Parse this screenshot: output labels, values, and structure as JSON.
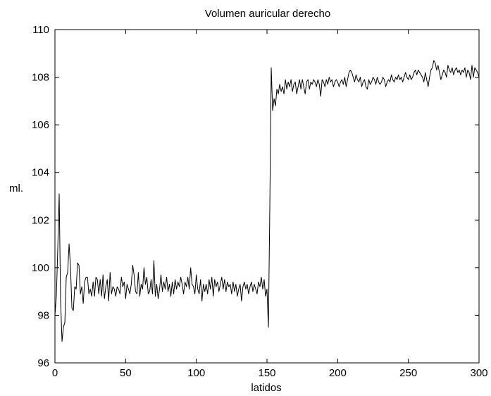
{
  "chart_data": {
    "type": "line",
    "title": "Volumen auricular derecho",
    "xlabel": "latidos",
    "ylabel": "ml.",
    "xlim": [
      0,
      300
    ],
    "ylim": [
      96,
      110
    ],
    "xticks": [
      0,
      50,
      100,
      150,
      200,
      250,
      300
    ],
    "yticks": [
      96,
      98,
      100,
      102,
      104,
      106,
      108,
      110
    ],
    "grid": false,
    "line_color": "#000000",
    "series": [
      {
        "values": [
          [
            0,
            98.0
          ],
          [
            1,
            98.8
          ],
          [
            2,
            100.8
          ],
          [
            3,
            103.1
          ],
          [
            4,
            98.6
          ],
          [
            5,
            96.9
          ],
          [
            6,
            97.5
          ],
          [
            7,
            97.7
          ],
          [
            8,
            99.6
          ],
          [
            9,
            99.8
          ],
          [
            10,
            101.0
          ],
          [
            11,
            100.0
          ],
          [
            12,
            98.3
          ],
          [
            13,
            98.2
          ],
          [
            14,
            99.2
          ],
          [
            15,
            99.1
          ],
          [
            16,
            100.2
          ],
          [
            17,
            100.1
          ],
          [
            18,
            98.9
          ],
          [
            19,
            99.2
          ],
          [
            20,
            98.5
          ],
          [
            21,
            99.4
          ],
          [
            22,
            99.6
          ],
          [
            23,
            99.6
          ],
          [
            24,
            98.9
          ],
          [
            25,
            99.1
          ],
          [
            26,
            98.8
          ],
          [
            27,
            99.4
          ],
          [
            28,
            98.8
          ],
          [
            29,
            99.6
          ],
          [
            30,
            99.5
          ],
          [
            31,
            98.9
          ],
          [
            32,
            99.5
          ],
          [
            33,
            98.8
          ],
          [
            34,
            99.7
          ],
          [
            35,
            98.7
          ],
          [
            36,
            99.2
          ],
          [
            37,
            99.5
          ],
          [
            38,
            98.6
          ],
          [
            39,
            99.8
          ],
          [
            40,
            98.9
          ],
          [
            41,
            99.2
          ],
          [
            42,
            99.1
          ],
          [
            43,
            98.8
          ],
          [
            44,
            99.2
          ],
          [
            45,
            99.1
          ],
          [
            46,
            98.9
          ],
          [
            47,
            99.6
          ],
          [
            48,
            99.2
          ],
          [
            49,
            99.4
          ],
          [
            50,
            98.7
          ],
          [
            51,
            99.3
          ],
          [
            52,
            99.1
          ],
          [
            53,
            98.9
          ],
          [
            54,
            99.3
          ],
          [
            55,
            100.1
          ],
          [
            56,
            99.7
          ],
          [
            57,
            99.0
          ],
          [
            58,
            98.9
          ],
          [
            59,
            99.8
          ],
          [
            60,
            98.8
          ],
          [
            61,
            99.3
          ],
          [
            62,
            99.1
          ],
          [
            63,
            100.0
          ],
          [
            64,
            99.3
          ],
          [
            65,
            99.6
          ],
          [
            66,
            98.9
          ],
          [
            67,
            99.0
          ],
          [
            68,
            99.5
          ],
          [
            69,
            98.9
          ],
          [
            70,
            100.3
          ],
          [
            71,
            98.8
          ],
          [
            72,
            99.3
          ],
          [
            73,
            98.7
          ],
          [
            74,
            99.1
          ],
          [
            75,
            99.7
          ],
          [
            76,
            99.0
          ],
          [
            77,
            99.4
          ],
          [
            78,
            99.1
          ],
          [
            79,
            99.6
          ],
          [
            80,
            99.0
          ],
          [
            81,
            99.3
          ],
          [
            82,
            98.8
          ],
          [
            83,
            99.4
          ],
          [
            84,
            98.9
          ],
          [
            85,
            99.5
          ],
          [
            86,
            99.1
          ],
          [
            87,
            99.4
          ],
          [
            88,
            99.2
          ],
          [
            89,
            99.6
          ],
          [
            90,
            99.3
          ],
          [
            91,
            98.9
          ],
          [
            92,
            99.4
          ],
          [
            93,
            99.2
          ],
          [
            94,
            99.6
          ],
          [
            95,
            99.1
          ],
          [
            96,
            100.0
          ],
          [
            97,
            99.3
          ],
          [
            98,
            99.2
          ],
          [
            99,
            98.9
          ],
          [
            100,
            99.7
          ],
          [
            101,
            99.1
          ],
          [
            102,
            98.9
          ],
          [
            103,
            99.5
          ],
          [
            104,
            98.6
          ],
          [
            105,
            99.3
          ],
          [
            106,
            99.0
          ],
          [
            107,
            99.3
          ],
          [
            108,
            98.9
          ],
          [
            109,
            99.5
          ],
          [
            110,
            99.1
          ],
          [
            111,
            99.6
          ],
          [
            112,
            98.8
          ],
          [
            113,
            99.5
          ],
          [
            114,
            99.2
          ],
          [
            115,
            99.4
          ],
          [
            116,
            99.0
          ],
          [
            117,
            99.3
          ],
          [
            118,
            99.6
          ],
          [
            119,
            99.1
          ],
          [
            120,
            99.5
          ],
          [
            121,
            99.0
          ],
          [
            122,
            99.4
          ],
          [
            123,
            99.2
          ],
          [
            124,
            99.3
          ],
          [
            125,
            98.9
          ],
          [
            126,
            99.4
          ],
          [
            127,
            99.0
          ],
          [
            128,
            99.3
          ],
          [
            129,
            98.8
          ],
          [
            130,
            99.1
          ],
          [
            131,
            99.3
          ],
          [
            132,
            98.6
          ],
          [
            133,
            99.2
          ],
          [
            134,
            99.4
          ],
          [
            135,
            99.1
          ],
          [
            136,
            99.3
          ],
          [
            137,
            98.9
          ],
          [
            138,
            99.2
          ],
          [
            139,
            99.4
          ],
          [
            140,
            99.0
          ],
          [
            141,
            99.3
          ],
          [
            142,
            99.1
          ],
          [
            143,
            98.9
          ],
          [
            144,
            99.4
          ],
          [
            145,
            99.2
          ],
          [
            146,
            99.6
          ],
          [
            147,
            99.1
          ],
          [
            148,
            99.5
          ],
          [
            149,
            98.8
          ],
          [
            150,
            99.1
          ],
          [
            151,
            97.5
          ],
          [
            152,
            102.5
          ],
          [
            153,
            108.4
          ],
          [
            154,
            106.6
          ],
          [
            155,
            107.1
          ],
          [
            156,
            106.8
          ],
          [
            157,
            107.5
          ],
          [
            158,
            107.3
          ],
          [
            159,
            107.7
          ],
          [
            160,
            107.4
          ],
          [
            161,
            107.6
          ],
          [
            162,
            107.3
          ],
          [
            163,
            107.9
          ],
          [
            164,
            107.5
          ],
          [
            165,
            107.8
          ],
          [
            166,
            107.6
          ],
          [
            167,
            107.9
          ],
          [
            168,
            107.4
          ],
          [
            169,
            107.7
          ],
          [
            170,
            107.8
          ],
          [
            171,
            107.3
          ],
          [
            172,
            107.6
          ],
          [
            173,
            107.9
          ],
          [
            174,
            107.5
          ],
          [
            175,
            107.9
          ],
          [
            176,
            107.6
          ],
          [
            177,
            107.3
          ],
          [
            178,
            107.8
          ],
          [
            179,
            107.9
          ],
          [
            180,
            107.5
          ],
          [
            181,
            107.8
          ],
          [
            182,
            107.7
          ],
          [
            183,
            107.9
          ],
          [
            184,
            107.8
          ],
          [
            185,
            107.6
          ],
          [
            186,
            107.9
          ],
          [
            187,
            107.7
          ],
          [
            188,
            107.2
          ],
          [
            189,
            107.9
          ],
          [
            190,
            107.8
          ],
          [
            191,
            107.6
          ],
          [
            192,
            107.9
          ],
          [
            193,
            107.7
          ],
          [
            194,
            108.0
          ],
          [
            195,
            107.8
          ],
          [
            196,
            107.9
          ],
          [
            197,
            107.6
          ],
          [
            198,
            107.8
          ],
          [
            199,
            107.9
          ],
          [
            200,
            107.8
          ],
          [
            201,
            107.6
          ],
          [
            202,
            107.8
          ],
          [
            203,
            107.9
          ],
          [
            204,
            107.7
          ],
          [
            205,
            108.0
          ],
          [
            206,
            107.6
          ],
          [
            207,
            107.9
          ],
          [
            208,
            108.2
          ],
          [
            209,
            108.3
          ],
          [
            210,
            108.2
          ],
          [
            211,
            108.0
          ],
          [
            212,
            107.8
          ],
          [
            213,
            108.1
          ],
          [
            214,
            107.9
          ],
          [
            215,
            107.8
          ],
          [
            216,
            108.0
          ],
          [
            217,
            107.6
          ],
          [
            218,
            107.8
          ],
          [
            219,
            107.9
          ],
          [
            220,
            107.6
          ],
          [
            221,
            107.5
          ],
          [
            222,
            107.9
          ],
          [
            223,
            107.7
          ],
          [
            224,
            107.8
          ],
          [
            225,
            108.0
          ],
          [
            226,
            107.9
          ],
          [
            227,
            107.7
          ],
          [
            228,
            108.0
          ],
          [
            229,
            107.8
          ],
          [
            230,
            107.7
          ],
          [
            231,
            107.8
          ],
          [
            232,
            108.0
          ],
          [
            233,
            107.9
          ],
          [
            234,
            107.6
          ],
          [
            235,
            107.8
          ],
          [
            236,
            107.9
          ],
          [
            237,
            107.8
          ],
          [
            238,
            108.1
          ],
          [
            239,
            107.9
          ],
          [
            240,
            107.8
          ],
          [
            241,
            108.0
          ],
          [
            242,
            107.9
          ],
          [
            243,
            108.1
          ],
          [
            244,
            107.9
          ],
          [
            245,
            108.0
          ],
          [
            246,
            107.8
          ],
          [
            247,
            108.0
          ],
          [
            248,
            108.2
          ],
          [
            249,
            108.0
          ],
          [
            250,
            107.9
          ],
          [
            251,
            108.1
          ],
          [
            252,
            107.9
          ],
          [
            253,
            108.0
          ],
          [
            254,
            108.2
          ],
          [
            255,
            108.3
          ],
          [
            256,
            108.1
          ],
          [
            257,
            108.3
          ],
          [
            258,
            108.2
          ],
          [
            259,
            108.1
          ],
          [
            260,
            108.0
          ],
          [
            261,
            107.8
          ],
          [
            262,
            108.2
          ],
          [
            263,
            107.9
          ],
          [
            264,
            107.6
          ],
          [
            265,
            108.0
          ],
          [
            266,
            108.3
          ],
          [
            267,
            108.4
          ],
          [
            268,
            108.7
          ],
          [
            269,
            108.6
          ],
          [
            270,
            108.3
          ],
          [
            271,
            108.5
          ],
          [
            272,
            108.2
          ],
          [
            273,
            107.9
          ],
          [
            274,
            108.1
          ],
          [
            275,
            108.3
          ],
          [
            276,
            108.2
          ],
          [
            277,
            108.0
          ],
          [
            278,
            108.5
          ],
          [
            279,
            108.3
          ],
          [
            280,
            108.2
          ],
          [
            281,
            108.4
          ],
          [
            282,
            108.1
          ],
          [
            283,
            108.3
          ],
          [
            284,
            108.4
          ],
          [
            285,
            108.2
          ],
          [
            286,
            108.3
          ],
          [
            287,
            108.1
          ],
          [
            288,
            108.3
          ],
          [
            289,
            108.2
          ],
          [
            290,
            108.4
          ],
          [
            291,
            108.0
          ],
          [
            292,
            108.3
          ],
          [
            293,
            108.2
          ],
          [
            294,
            107.9
          ],
          [
            295,
            108.5
          ],
          [
            296,
            108.0
          ],
          [
            297,
            108.4
          ],
          [
            298,
            108.3
          ],
          [
            299,
            108.2
          ],
          [
            300,
            108.0
          ]
        ]
      }
    ]
  }
}
